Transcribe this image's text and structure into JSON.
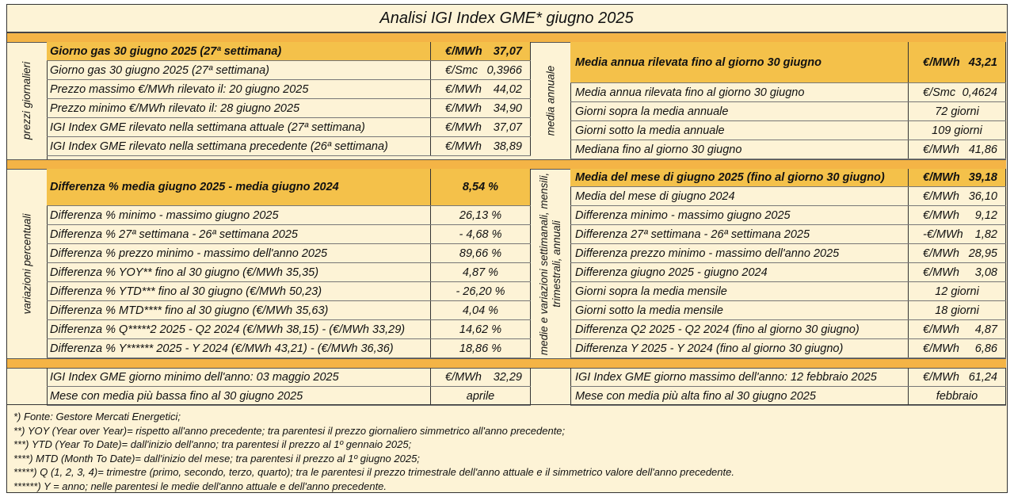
{
  "title": "Analisi IGI Index GME* giugno 2025",
  "section_labels": {
    "daily": "prezzi giornalieri",
    "annual": "media annuale",
    "percent": "variazioni percentuali",
    "combined_line1": "medie e variazioni settimanali, mensili,",
    "combined_line2": "trimestrali, annuali"
  },
  "section1_left": [
    {
      "label": "Giorno gas 30 giugno 2025 (27ª settimana)",
      "unit": "€/MWh",
      "value": "37,07",
      "highlight": true
    },
    {
      "label": "Giorno gas 30 giugno 2025 (27ª settimana)",
      "unit": "€/Smc",
      "value": "0,3966"
    },
    {
      "label": "Prezzo massimo €/MWh rilevato il: 20 giugno 2025",
      "unit": "€/MWh",
      "value": "44,02"
    },
    {
      "label": "Prezzo minimo €/MWh rilevato il: 28 giugno 2025",
      "unit": "€/MWh",
      "value": "34,90"
    },
    {
      "label": "IGI Index GME rilevato nella settimana attuale (27ª settimana)",
      "unit": "€/MWh",
      "value": "37,07"
    },
    {
      "label": "IGI Index GME rilevato nella settimana precedente (26ª settimana)",
      "unit": "€/MWh",
      "value": "38,89"
    }
  ],
  "section1_right": [
    {
      "label": "Media annua rilevata fino al giorno 30 giugno",
      "unit": "€/MWh",
      "value": "43,21",
      "highlight": true
    },
    {
      "label": "Media annua rilevata fino al giorno 30 giugno",
      "unit": "€/Smc",
      "value": "0,4624"
    },
    {
      "label": "Giorni sopra la media annuale",
      "text": "72 giorni"
    },
    {
      "label": "Giorni sotto la media annuale",
      "text": "109 giorni"
    },
    {
      "label": "Mediana fino al giorno 30 giugno",
      "unit": "€/MWh",
      "value": "41,86"
    }
  ],
  "section2_left": [
    {
      "label": "Differenza % media giugno 2025 - media giugno 2024",
      "text": "8,54 %",
      "highlight": true
    },
    {
      "label": "Differenza % minimo - massimo giugno 2025",
      "text": "26,13 %"
    },
    {
      "label": "Differenza % 27ª settimana - 26ª settimana 2025",
      "text": "- 4,68 %"
    },
    {
      "label": "Differenza % prezzo minimo - massimo dell'anno 2025",
      "text": "89,66 %"
    },
    {
      "label": "Differenza % YOY** fino al 30 giugno       (€/MWh 35,35)",
      "text": "4,87 %"
    },
    {
      "label": "Differenza % YTD*** fino al 30 giugno    (€/MWh 50,23)",
      "text": "- 26,20 %"
    },
    {
      "label": "Differenza % MTD**** fino al 30 giugno (€/MWh 35,63)",
      "text": "4,04 %"
    },
    {
      "label": "Differenza % Q*****2 2025 - Q2 2024   (€/MWh 38,15) - (€/MWh 33,29)",
      "text": "14,62 %"
    },
    {
      "label": "Differenza % Y****** 2025 - Y 2024       (€/MWh 43,21) - (€/MWh 36,36)",
      "text": "18,86 %"
    }
  ],
  "section2_right": [
    {
      "label": "Media del mese di giugno 2025 (fino al giorno 30 giugno)",
      "unit": "€/MWh",
      "value": "39,18",
      "highlight": true
    },
    {
      "label": "Media del mese di giugno 2024",
      "unit": "€/MWh",
      "value": "36,10"
    },
    {
      "label": "Differenza minimo - massimo giugno 2025",
      "unit": "€/MWh",
      "value": "9,12"
    },
    {
      "label": "Differenza 27ª settimana - 26ª settimana 2025",
      "unit": "-€/MWh",
      "value": "1,82"
    },
    {
      "label": "Differenza prezzo minimo - massimo dell'anno 2025",
      "unit": "€/MWh",
      "value": "28,95"
    },
    {
      "label": "Differenza giugno 2025 - giugno 2024",
      "unit": "€/MWh",
      "value": "3,08"
    },
    {
      "label": "Giorni sopra la media mensile",
      "text": "12 giorni"
    },
    {
      "label": "Giorni sotto la media mensile",
      "text": "18 giorni"
    },
    {
      "label": "Differenza Q2 2025 - Q2 2024 (fino al giorno 30 giugno)",
      "unit": "€/MWh",
      "value": "4,87"
    },
    {
      "label": "Differenza Y 2025 - Y 2024 (fino al giorno 30 giugno)",
      "unit": "€/MWh",
      "value": "6,86"
    }
  ],
  "section3_left": [
    {
      "label": "IGI Index GME giorno minimo dell'anno: 03 maggio 2025",
      "unit": "€/MWh",
      "value": "32,29"
    },
    {
      "label": "Mese con media più bassa fino al 30 giugno 2025",
      "text": "aprile"
    }
  ],
  "section3_right": [
    {
      "label": "IGI Index GME giorno massimo dell'anno: 12 febbraio 2025",
      "unit": "€/MWh",
      "value": "61,24"
    },
    {
      "label": "Mese con media più alta fino al 30 giugno 2025",
      "text": "febbraio"
    }
  ],
  "notes": [
    "*) Fonte: Gestore Mercati Energetici;",
    "**) YOY (Year over Year)= rispetto all'anno precedente; tra parentesi il prezzo giornaliero simmetrico all'anno precedente;",
    "***) YTD (Year To Date)= dall'inizio dell'anno; tra parentesi il prezzo al 1º gennaio 2025;",
    "****) MTD (Month To Date)= dall'inizio del mese; tra parentesi il prezzo al 1º giugno 2025;",
    "*****) Q (1, 2, 3, 4)= trimestre (primo, secondo, terzo, quarto); tra le parentesi il prezzo trimestrale dell'anno attuale e il simmetrico valore dell'anno precedente.",
    "******) Y = anno; nelle parentesi le medie dell'anno attuale e dell'anno precedente."
  ],
  "colors": {
    "highlight": "#f4c14a",
    "band": "#f4b446",
    "background": "#fdf3d6"
  }
}
